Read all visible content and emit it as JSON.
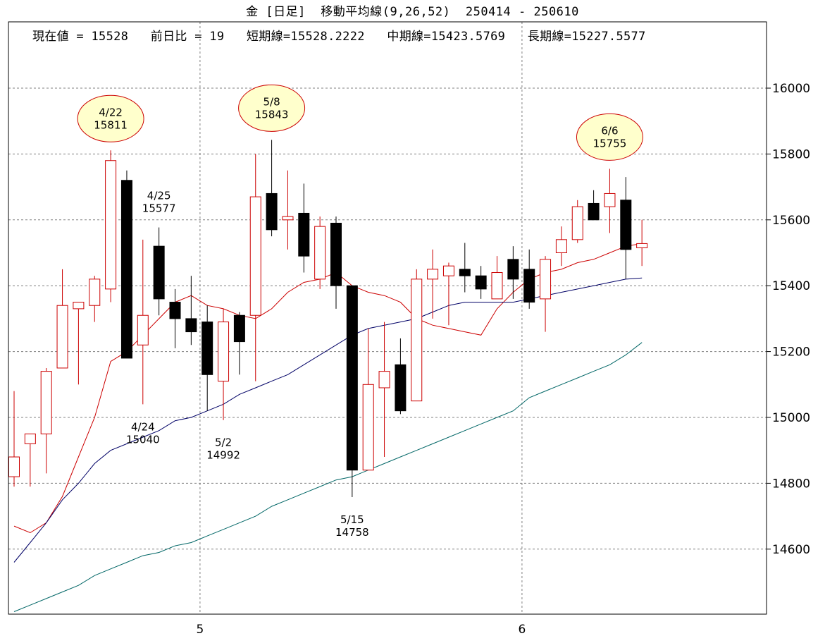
{
  "header": {
    "title": "金 [日足]  移動平均線(9,26,52)  250414 - 250610",
    "current_value": "現在値 = 15528",
    "prev_change": "前日比 = 19",
    "short_ma": "短期線=15528.2222",
    "mid_ma": "中期線=15423.5769",
    "long_ma": "長期線=15227.5577"
  },
  "colors": {
    "up_candle": "#cc0000",
    "down_candle": "#000000",
    "short_ma": "#cc0000",
    "mid_ma": "#000066",
    "long_ma": "#006666",
    "grid": "#808080",
    "bubble": "#ffffcc"
  },
  "chart_data": {
    "type": "candlestick",
    "title": "金 [日足]  移動平均線(9,26,52)  250414 - 250610",
    "ylim": [
      14400,
      16200
    ],
    "y_ticks": [
      "14600",
      "14800",
      "15000",
      "15200",
      "15400",
      "15600",
      "15800",
      "16000"
    ],
    "x_ticks": [
      {
        "label": "5",
        "index": 11.55
      },
      {
        "label": "6",
        "index": 31.55
      }
    ],
    "candles": [
      {
        "open": 14820,
        "high": 15080,
        "low": 14790,
        "close": 14880
      },
      {
        "open": 14920,
        "high": 14950,
        "low": 14790,
        "close": 14950
      },
      {
        "open": 14950,
        "high": 15150,
        "low": 14830,
        "close": 15140
      },
      {
        "open": 15150,
        "high": 15450,
        "low": 15150,
        "close": 15340
      },
      {
        "open": 15330,
        "high": 15350,
        "low": 15100,
        "close": 15350
      },
      {
        "open": 15340,
        "high": 15430,
        "low": 15290,
        "close": 15420
      },
      {
        "open": 15390,
        "high": 15811,
        "low": 15350,
        "close": 15780
      },
      {
        "open": 15720,
        "high": 15750,
        "low": 15180,
        "close": 15180
      },
      {
        "open": 15220,
        "high": 15540,
        "low": 15040,
        "close": 15310
      },
      {
        "open": 15520,
        "high": 15577,
        "low": 15310,
        "close": 15360
      },
      {
        "open": 15350,
        "high": 15390,
        "low": 15210,
        "close": 15300
      },
      {
        "open": 15300,
        "high": 15430,
        "low": 15220,
        "close": 15260
      },
      {
        "open": 15290,
        "high": 15340,
        "low": 15020,
        "close": 15130
      },
      {
        "open": 15110,
        "high": 15330,
        "low": 14992,
        "close": 15290
      },
      {
        "open": 15310,
        "high": 15320,
        "low": 15130,
        "close": 15230
      },
      {
        "open": 15310,
        "high": 15800,
        "low": 15110,
        "close": 15670
      },
      {
        "open": 15680,
        "high": 15843,
        "low": 15550,
        "close": 15570
      },
      {
        "open": 15600,
        "high": 15750,
        "low": 15510,
        "close": 15610
      },
      {
        "open": 15620,
        "high": 15710,
        "low": 15440,
        "close": 15490
      },
      {
        "open": 15420,
        "high": 15610,
        "low": 15390,
        "close": 15580
      },
      {
        "open": 15590,
        "high": 15610,
        "low": 15330,
        "close": 15400
      },
      {
        "open": 15400,
        "high": 15400,
        "low": 14758,
        "close": 14840
      },
      {
        "open": 14840,
        "high": 15270,
        "low": 14840,
        "close": 15100
      },
      {
        "open": 15090,
        "high": 15290,
        "low": 14880,
        "close": 15140
      },
      {
        "open": 15160,
        "high": 15240,
        "low": 15010,
        "close": 15020
      },
      {
        "open": 15050,
        "high": 15450,
        "low": 15050,
        "close": 15420
      },
      {
        "open": 15420,
        "high": 15510,
        "low": 15300,
        "close": 15450
      },
      {
        "open": 15430,
        "high": 15470,
        "low": 15280,
        "close": 15460
      },
      {
        "open": 15450,
        "high": 15530,
        "low": 15380,
        "close": 15430
      },
      {
        "open": 15430,
        "high": 15460,
        "low": 15360,
        "close": 15390
      },
      {
        "open": 15360,
        "high": 15490,
        "low": 15360,
        "close": 15440
      },
      {
        "open": 15480,
        "high": 15520,
        "low": 15360,
        "close": 15420
      },
      {
        "open": 15450,
        "high": 15510,
        "low": 15330,
        "close": 15350
      },
      {
        "open": 15360,
        "high": 15490,
        "low": 15260,
        "close": 15480
      },
      {
        "open": 15500,
        "high": 15580,
        "low": 15460,
        "close": 15540
      },
      {
        "open": 15540,
        "high": 15660,
        "low": 15530,
        "close": 15640
      },
      {
        "open": 15650,
        "high": 15690,
        "low": 15600,
        "close": 15600
      },
      {
        "open": 15640,
        "high": 15755,
        "low": 15560,
        "close": 15680
      },
      {
        "open": 15660,
        "high": 15730,
        "low": 15420,
        "close": 15510
      },
      {
        "open": 15515,
        "high": 15600,
        "low": 15460,
        "close": 15528
      }
    ],
    "series": [
      {
        "name": "短期線",
        "values": [
          [
            0,
            14670
          ],
          [
            1,
            14650
          ],
          [
            2,
            14680
          ],
          [
            3,
            14760
          ],
          [
            4,
            14880
          ],
          [
            5,
            15000
          ],
          [
            6,
            15170
          ],
          [
            7,
            15200
          ],
          [
            8,
            15250
          ],
          [
            9,
            15300
          ],
          [
            10,
            15350
          ],
          [
            11,
            15370
          ],
          [
            12,
            15340
          ],
          [
            13,
            15330
          ],
          [
            14,
            15310
          ],
          [
            15,
            15300
          ],
          [
            16,
            15330
          ],
          [
            17,
            15380
          ],
          [
            18,
            15410
          ],
          [
            19,
            15420
          ],
          [
            20,
            15440
          ],
          [
            21,
            15400
          ],
          [
            22,
            15380
          ],
          [
            23,
            15370
          ],
          [
            24,
            15350
          ],
          [
            25,
            15300
          ],
          [
            26,
            15280
          ],
          [
            27,
            15270
          ],
          [
            28,
            15260
          ],
          [
            29,
            15250
          ],
          [
            30,
            15330
          ],
          [
            31,
            15380
          ],
          [
            32,
            15420
          ],
          [
            33,
            15440
          ],
          [
            34,
            15450
          ],
          [
            35,
            15470
          ],
          [
            36,
            15480
          ],
          [
            37,
            15500
          ],
          [
            38,
            15520
          ],
          [
            39,
            15528
          ]
        ]
      },
      {
        "name": "中期線",
        "values": [
          [
            0,
            14560
          ],
          [
            1,
            14620
          ],
          [
            2,
            14680
          ],
          [
            3,
            14750
          ],
          [
            4,
            14800
          ],
          [
            5,
            14860
          ],
          [
            6,
            14900
          ],
          [
            7,
            14920
          ],
          [
            8,
            14940
          ],
          [
            9,
            14960
          ],
          [
            10,
            14990
          ],
          [
            11,
            15000
          ],
          [
            12,
            15020
          ],
          [
            13,
            15040
          ],
          [
            14,
            15070
          ],
          [
            15,
            15090
          ],
          [
            16,
            15110
          ],
          [
            17,
            15130
          ],
          [
            18,
            15160
          ],
          [
            19,
            15190
          ],
          [
            20,
            15220
          ],
          [
            21,
            15250
          ],
          [
            22,
            15270
          ],
          [
            23,
            15280
          ],
          [
            24,
            15290
          ],
          [
            25,
            15300
          ],
          [
            26,
            15320
          ],
          [
            27,
            15340
          ],
          [
            28,
            15350
          ],
          [
            29,
            15350
          ],
          [
            30,
            15350
          ],
          [
            31,
            15350
          ],
          [
            32,
            15360
          ],
          [
            33,
            15370
          ],
          [
            34,
            15380
          ],
          [
            35,
            15390
          ],
          [
            36,
            15400
          ],
          [
            37,
            15410
          ],
          [
            38,
            15420
          ],
          [
            39,
            15423.5769
          ]
        ]
      },
      {
        "name": "長期線",
        "values": [
          [
            0,
            14410
          ],
          [
            1,
            14430
          ],
          [
            2,
            14450
          ],
          [
            3,
            14470
          ],
          [
            4,
            14490
          ],
          [
            5,
            14520
          ],
          [
            6,
            14540
          ],
          [
            7,
            14560
          ],
          [
            8,
            14580
          ],
          [
            9,
            14590
          ],
          [
            10,
            14610
          ],
          [
            11,
            14620
          ],
          [
            12,
            14640
          ],
          [
            13,
            14660
          ],
          [
            14,
            14680
          ],
          [
            15,
            14700
          ],
          [
            16,
            14730
          ],
          [
            17,
            14750
          ],
          [
            18,
            14770
          ],
          [
            19,
            14790
          ],
          [
            20,
            14810
          ],
          [
            21,
            14820
          ],
          [
            22,
            14840
          ],
          [
            23,
            14860
          ],
          [
            24,
            14880
          ],
          [
            25,
            14900
          ],
          [
            26,
            14920
          ],
          [
            27,
            14940
          ],
          [
            28,
            14960
          ],
          [
            29,
            14980
          ],
          [
            30,
            15000
          ],
          [
            31,
            15020
          ],
          [
            32,
            15060
          ],
          [
            33,
            15080
          ],
          [
            34,
            15100
          ],
          [
            35,
            15120
          ],
          [
            36,
            15140
          ],
          [
            37,
            15160
          ],
          [
            38,
            15190
          ],
          [
            39,
            15227.5577
          ]
        ]
      }
    ],
    "annotations": [
      {
        "date": "4/22",
        "value": "15811",
        "index": 6,
        "style": "bubble"
      },
      {
        "date": "5/8",
        "value": "15843",
        "index": 16,
        "style": "bubble"
      },
      {
        "date": "6/6",
        "value": "15755",
        "index": 37,
        "style": "bubble"
      },
      {
        "date": "4/25",
        "value": "15577",
        "index": 9,
        "style": "text"
      },
      {
        "date": "4/24",
        "value": "15040",
        "index": 8,
        "style": "text"
      },
      {
        "date": "5/2",
        "value": "14992",
        "index": 13,
        "style": "text"
      },
      {
        "date": "5/15",
        "value": "14758",
        "index": 21,
        "style": "text"
      }
    ]
  }
}
